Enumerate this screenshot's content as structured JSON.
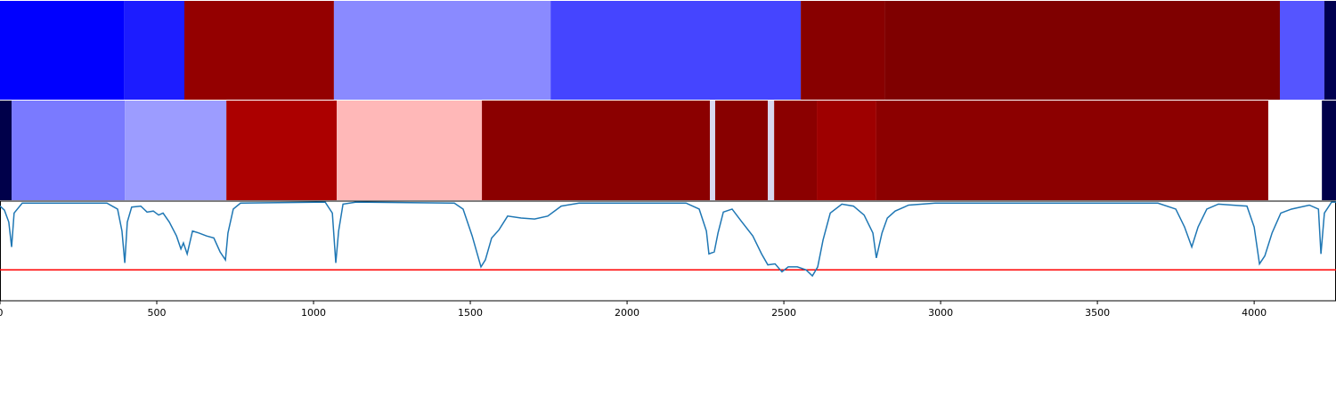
{
  "chart_data": {
    "type": "segment-line",
    "xlim": [
      0,
      4261
    ],
    "xticks": [
      0,
      500,
      1000,
      1500,
      2000,
      2500,
      3000,
      3500,
      4000
    ],
    "ylim": [
      0,
      1
    ],
    "bands": [
      {
        "segments": [
          {
            "start": 0,
            "end": 395,
            "color": "#0000ff"
          },
          {
            "start": 395,
            "end": 588,
            "color": "#1c1cff"
          },
          {
            "start": 588,
            "end": 1065,
            "color": "#940000"
          },
          {
            "start": 1065,
            "end": 1756,
            "color": "#8a8aff"
          },
          {
            "start": 1756,
            "end": 2554,
            "color": "#4545ff"
          },
          {
            "start": 2554,
            "end": 2821,
            "color": "#880000"
          },
          {
            "start": 2821,
            "end": 4082,
            "color": "#7f0000"
          },
          {
            "start": 4082,
            "end": 4224,
            "color": "#5555ff"
          },
          {
            "start": 4224,
            "end": 4261,
            "color": "#000050"
          }
        ]
      },
      {
        "segments": [
          {
            "start": 0,
            "end": 37,
            "color": "#00004a"
          },
          {
            "start": 37,
            "end": 398,
            "color": "#7a7aff"
          },
          {
            "start": 398,
            "end": 722,
            "color": "#9c9cff"
          },
          {
            "start": 722,
            "end": 1074,
            "color": "#ac0000"
          },
          {
            "start": 1074,
            "end": 1537,
            "color": "#ffb8b8"
          },
          {
            "start": 1537,
            "end": 2264,
            "color": "#8b0000"
          },
          {
            "start": 2264,
            "end": 2281,
            "color": "#d8d8f0"
          },
          {
            "start": 2281,
            "end": 2449,
            "color": "#880000"
          },
          {
            "start": 2449,
            "end": 2469,
            "color": "#d8d8f0"
          },
          {
            "start": 2469,
            "end": 2605,
            "color": "#8b0000"
          },
          {
            "start": 2605,
            "end": 2795,
            "color": "#9e0000"
          },
          {
            "start": 2795,
            "end": 4045,
            "color": "#8c0000"
          },
          {
            "start": 4045,
            "end": 4216,
            "color": "#ffffff"
          },
          {
            "start": 4216,
            "end": 4261,
            "color": "#00004a"
          }
        ]
      }
    ],
    "line": {
      "color": "#1f77b4",
      "x": [
        0,
        14,
        28,
        37,
        45,
        71,
        341,
        375,
        389,
        398,
        406,
        420,
        449,
        469,
        489,
        506,
        520,
        540,
        563,
        577,
        585,
        597,
        614,
        634,
        659,
        682,
        702,
        719,
        727,
        744,
        767,
        1037,
        1060,
        1071,
        1080,
        1094,
        1136,
        1449,
        1477,
        1506,
        1534,
        1548,
        1568,
        1591,
        1619,
        1662,
        1705,
        1747,
        1790,
        1847,
        2188,
        2230,
        2253,
        2261,
        2278,
        2290,
        2307,
        2335,
        2364,
        2401,
        2429,
        2449,
        2472,
        2494,
        2514,
        2543,
        2571,
        2591,
        2608,
        2625,
        2648,
        2685,
        2722,
        2756,
        2784,
        2795,
        2813,
        2830,
        2855,
        2898,
        2983,
        3693,
        3750,
        3778,
        3801,
        3821,
        3849,
        3886,
        3977,
        4000,
        4017,
        4034,
        4057,
        4085,
        4119,
        4176,
        4205,
        4213,
        4224,
        4247,
        4261
      ],
      "values": [
        0.95,
        0.91,
        0.79,
        0.54,
        0.88,
        0.98,
        0.98,
        0.92,
        0.7,
        0.38,
        0.79,
        0.94,
        0.95,
        0.89,
        0.9,
        0.86,
        0.88,
        0.79,
        0.65,
        0.52,
        0.58,
        0.47,
        0.7,
        0.68,
        0.65,
        0.63,
        0.49,
        0.41,
        0.68,
        0.92,
        0.98,
        0.99,
        0.88,
        0.38,
        0.7,
        0.97,
        0.99,
        0.98,
        0.92,
        0.65,
        0.34,
        0.41,
        0.63,
        0.71,
        0.85,
        0.83,
        0.82,
        0.85,
        0.95,
        0.98,
        0.98,
        0.92,
        0.7,
        0.47,
        0.49,
        0.68,
        0.89,
        0.92,
        0.8,
        0.65,
        0.47,
        0.36,
        0.37,
        0.29,
        0.34,
        0.34,
        0.31,
        0.25,
        0.34,
        0.61,
        0.88,
        0.97,
        0.95,
        0.86,
        0.68,
        0.43,
        0.68,
        0.83,
        0.9,
        0.96,
        0.98,
        0.98,
        0.92,
        0.74,
        0.54,
        0.74,
        0.92,
        0.97,
        0.95,
        0.74,
        0.37,
        0.45,
        0.68,
        0.88,
        0.92,
        0.96,
        0.92,
        0.47,
        0.88,
        0.99,
        0.99
      ]
    },
    "threshold": {
      "value": 0.31,
      "color": "#ff0000"
    }
  }
}
